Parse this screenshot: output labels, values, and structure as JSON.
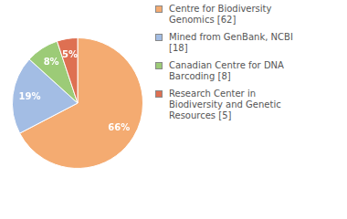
{
  "chart_data": {
    "type": "pie",
    "categories": [
      "Centre for Biodiversity Genomics [62]",
      "Mined from GenBank, NCBI [18]",
      "Canadian Centre for DNA Barcoding [8]",
      "Research Center in Biodiversity and Genetic Resources [5]"
    ],
    "values": [
      66,
      19,
      8,
      5
    ],
    "value_labels": [
      "66%",
      "19%",
      "8%",
      "5%"
    ],
    "colors": [
      "#f4ab71",
      "#a3bde4",
      "#9ccb77",
      "#de7052"
    ],
    "data_labels": true,
    "legend": "right"
  }
}
